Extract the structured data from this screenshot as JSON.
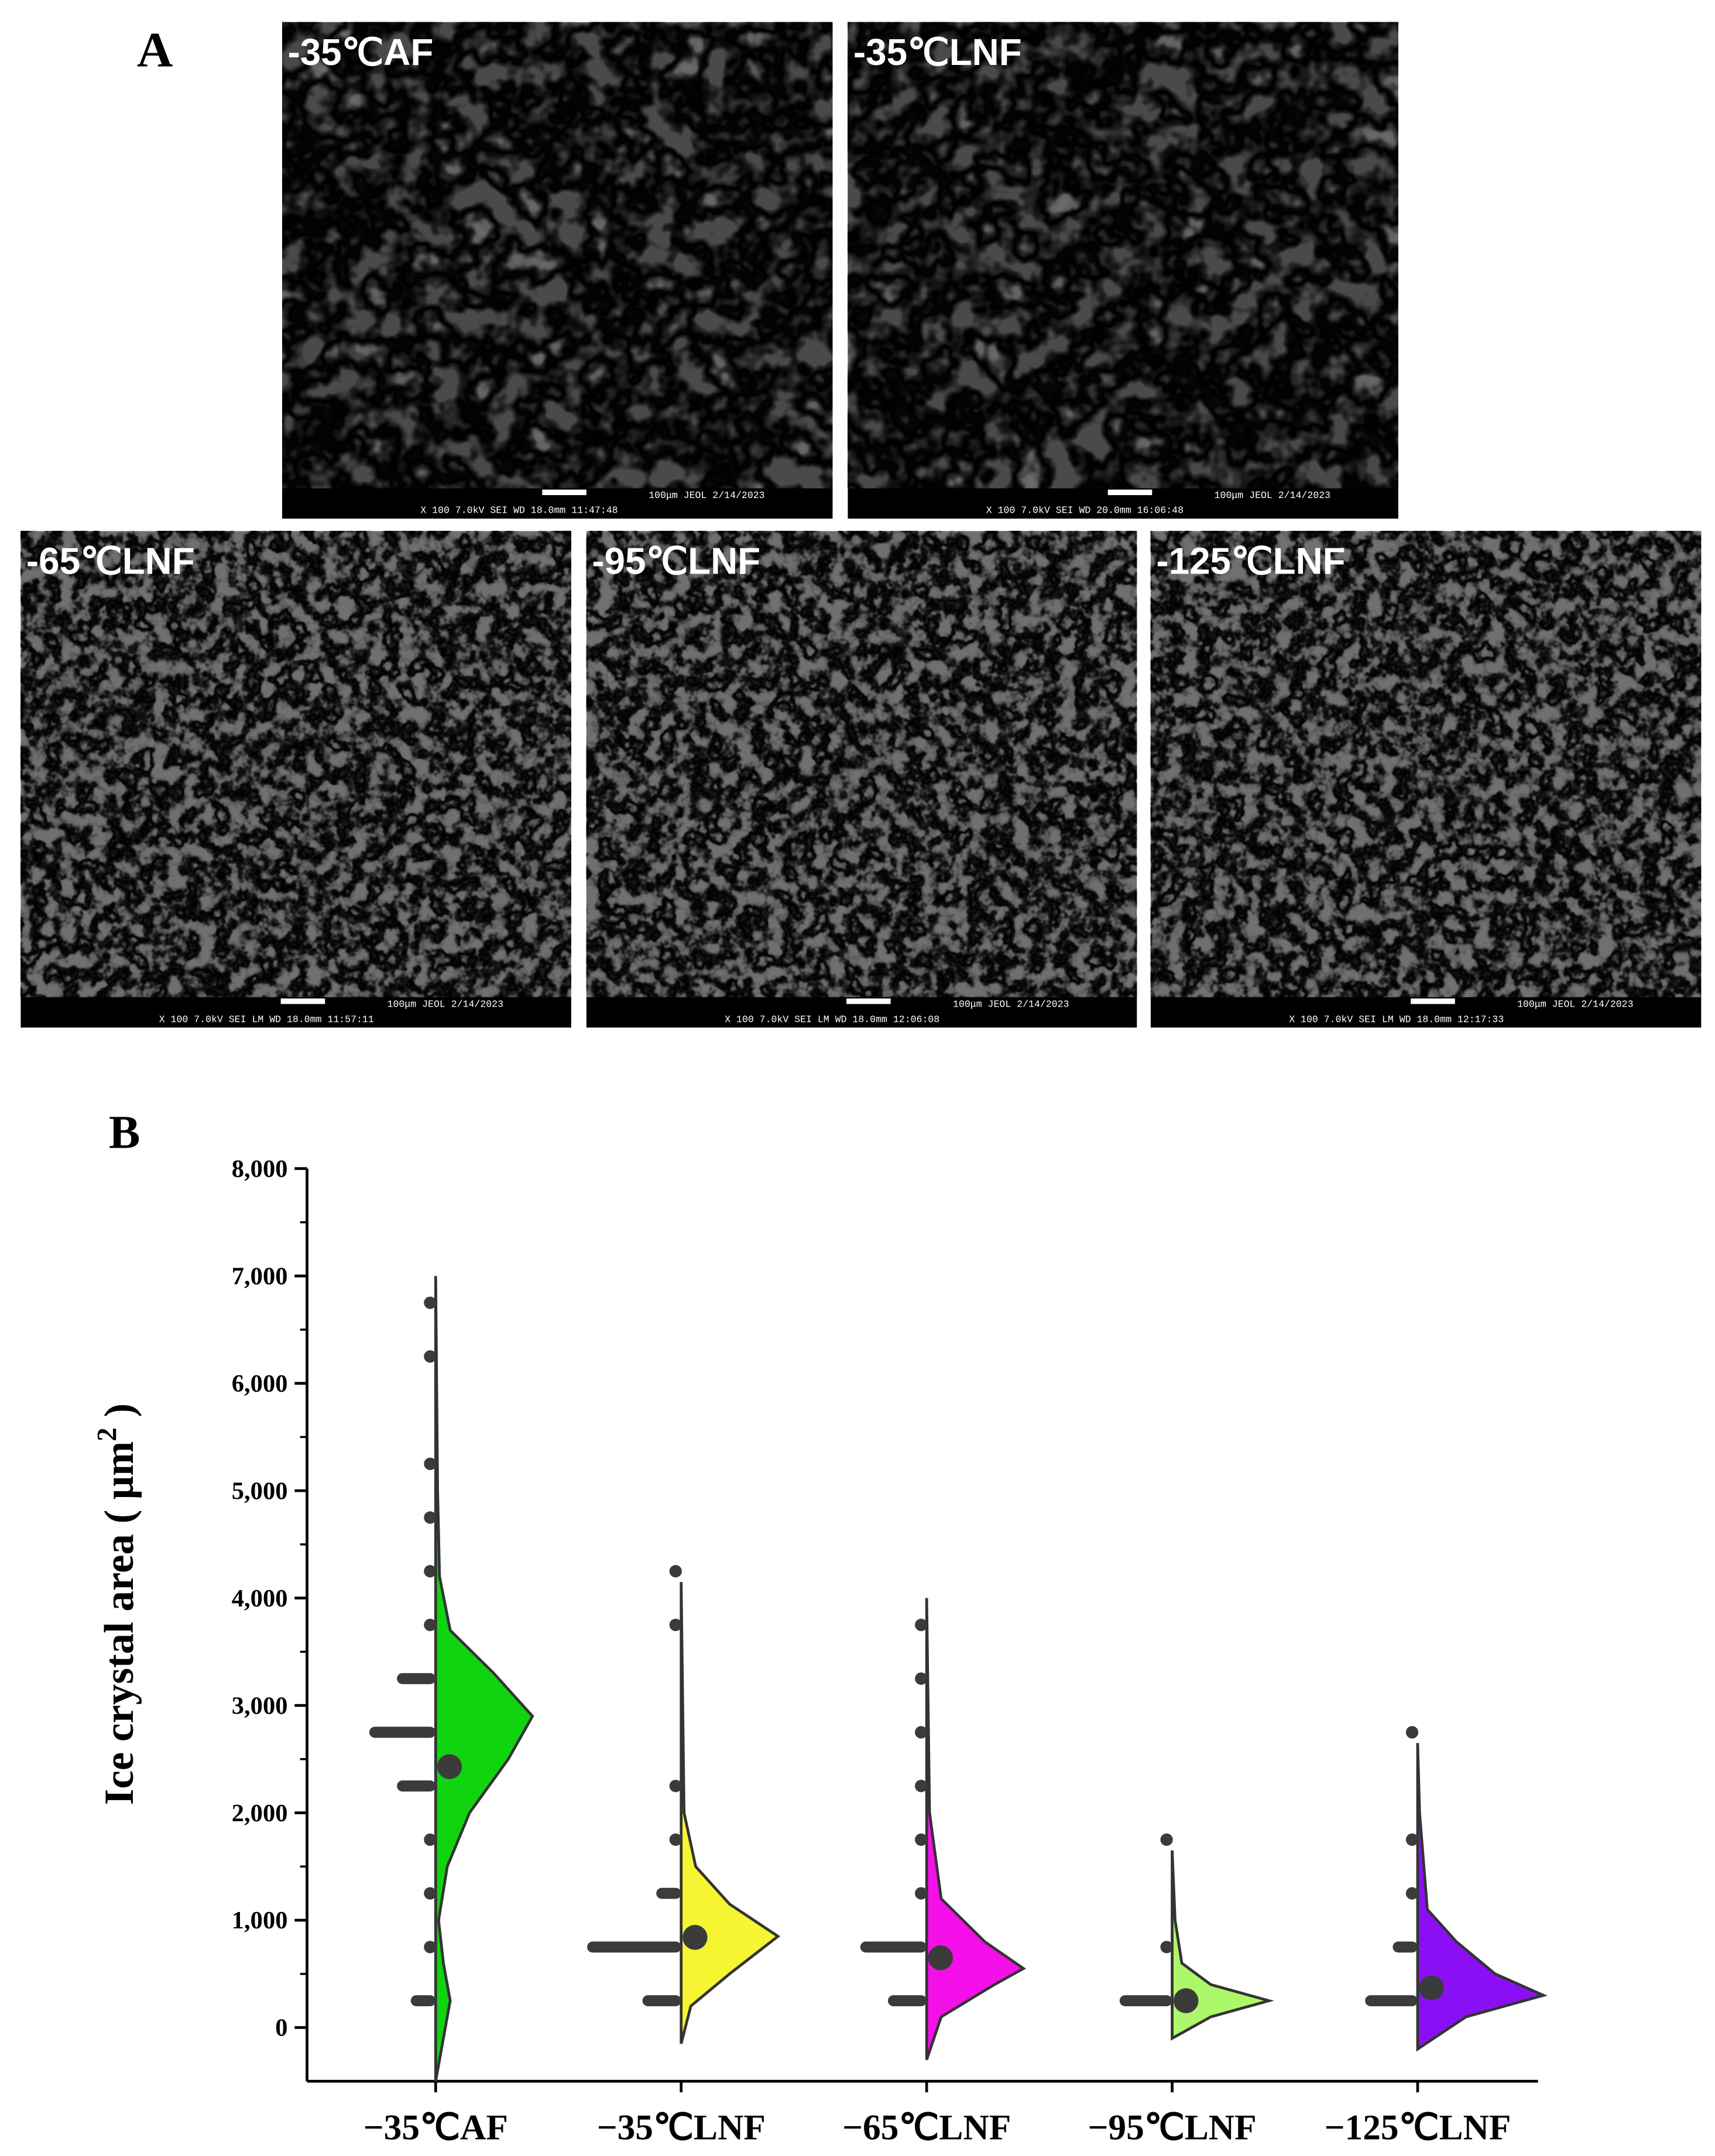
{
  "panel_a": {
    "label": "A",
    "images": [
      {
        "label": "-35℃AF",
        "bar_top": "100μm JEOL    2/14/2023",
        "bar_bottom": "X 100      7.0kV  SEI       WD 18.0mm 11:47:48"
      },
      {
        "label": "-35℃LNF",
        "bar_top": "100μm JEOL    2/14/2023",
        "bar_bottom": "X 100      7.0kV  SEI       WD 20.0mm 16:06:48"
      },
      {
        "label": "-65℃LNF",
        "bar_top": "100μm JEOL    2/14/2023",
        "bar_bottom": "X 100      7.0kV  SEI    LM    WD 18.0mm 11:57:11"
      },
      {
        "label": "-95℃LNF",
        "bar_top": "100μm JEOL    2/14/2023",
        "bar_bottom": "X 100      7.0kV  SEI    LM    WD 18.0mm 12:06:08"
      },
      {
        "label": "-125℃LNF",
        "bar_top": "100μm JEOL    2/14/2023",
        "bar_bottom": "X 100      7.0kV  SEI    LM    WD 18.0mm 12:17:33"
      }
    ]
  },
  "panel_b": {
    "label": "B"
  },
  "chart_data": {
    "type": "raincloud",
    "ylabel": {
      "text": "Ice crystal area ( μm",
      "sup": "2",
      "end": " )"
    },
    "categories": [
      "−35℃AF",
      "−35℃LNF",
      "−65℃LNF",
      "−95℃LNF",
      "−125℃LNF"
    ],
    "ylim": [
      -500,
      8000
    ],
    "yticks": [
      0,
      {
        "value": 1000,
        "label": "1,000"
      },
      {
        "value": 2000,
        "label": "2,000"
      },
      {
        "value": 3000,
        "label": "3,000"
      },
      {
        "value": 4000,
        "label": "4,000"
      },
      {
        "value": 5000,
        "label": "5,000"
      },
      {
        "value": 6000,
        "label": "6,000"
      },
      {
        "value": 7000,
        "label": "7,000"
      },
      {
        "value": 8000,
        "label": "8,000"
      }
    ],
    "yminor": [
      500,
      1500,
      2500,
      3500,
      4500,
      5500,
      6500,
      7500
    ],
    "groups": [
      {
        "color": "#11d411",
        "mean": 2430,
        "points": [
          {
            "value": 250,
            "count": 2
          },
          {
            "value": 750,
            "count": 1
          },
          {
            "value": 1250,
            "count": 1
          },
          {
            "value": 1750,
            "count": 1
          },
          {
            "value": 2250,
            "count": 3
          },
          {
            "value": 2750,
            "count": 5
          },
          {
            "value": 3250,
            "count": 3
          },
          {
            "value": 3750,
            "count": 1
          },
          {
            "value": 4250,
            "count": 1
          },
          {
            "value": 4750,
            "count": 1
          },
          {
            "value": 5250,
            "count": 1
          },
          {
            "value": 6250,
            "count": 1
          },
          {
            "value": 6750,
            "count": 1
          }
        ],
        "violin": {
          "y": [
            -500,
            0,
            250,
            600,
            1000,
            1500,
            2000,
            2500,
            2900,
            3300,
            3700,
            4200,
            5000,
            7000
          ],
          "width": [
            0,
            0.1,
            0.15,
            0.08,
            0.03,
            0.12,
            0.35,
            0.75,
            1,
            0.6,
            0.15,
            0.04,
            0.02,
            0
          ]
        }
      },
      {
        "color": "#f5f532",
        "mean": 840,
        "points": [
          {
            "value": 250,
            "count": 3
          },
          {
            "value": 750,
            "count": 7
          },
          {
            "value": 1250,
            "count": 2
          },
          {
            "value": 1750,
            "count": 1
          },
          {
            "value": 2250,
            "count": 1
          },
          {
            "value": 3750,
            "count": 1
          },
          {
            "value": 4250,
            "count": 1
          }
        ],
        "violin": {
          "y": [
            -150,
            200,
            500,
            850,
            1150,
            1500,
            2000,
            4150
          ],
          "width": [
            0,
            0.1,
            0.5,
            1,
            0.5,
            0.15,
            0.03,
            0
          ]
        }
      },
      {
        "color": "#f50fe8",
        "mean": 650,
        "points": [
          {
            "value": 250,
            "count": 3
          },
          {
            "value": 750,
            "count": 5
          },
          {
            "value": 1250,
            "count": 1
          },
          {
            "value": 1750,
            "count": 1
          },
          {
            "value": 2250,
            "count": 1
          },
          {
            "value": 2750,
            "count": 1
          },
          {
            "value": 3250,
            "count": 1
          },
          {
            "value": 3750,
            "count": 1
          }
        ],
        "violin": {
          "y": [
            -300,
            100,
            400,
            550,
            800,
            1200,
            2000,
            4000
          ],
          "width": [
            0,
            0.15,
            0.7,
            1,
            0.6,
            0.15,
            0.03,
            0
          ]
        }
      },
      {
        "color": "#adf76a",
        "mean": 250,
        "points": [
          {
            "value": 250,
            "count": 4
          },
          {
            "value": 750,
            "count": 1
          },
          {
            "value": 1750,
            "count": 1
          }
        ],
        "violin": {
          "y": [
            -100,
            100,
            250,
            400,
            600,
            1000,
            1650
          ],
          "width": [
            0,
            0.4,
            1,
            0.4,
            0.1,
            0.03,
            0
          ]
        }
      },
      {
        "color": "#8b0ff5",
        "mean": 370,
        "points": [
          {
            "value": 250,
            "count": 4
          },
          {
            "value": 750,
            "count": 2
          },
          {
            "value": 1250,
            "count": 1
          },
          {
            "value": 1750,
            "count": 1
          },
          {
            "value": 2750,
            "count": 1
          }
        ],
        "violin": {
          "y": [
            -200,
            100,
            300,
            500,
            800,
            1100,
            2000,
            2650
          ],
          "width": [
            0,
            0.5,
            1.3,
            0.8,
            0.4,
            0.1,
            0.02,
            0
          ]
        }
      }
    ]
  }
}
